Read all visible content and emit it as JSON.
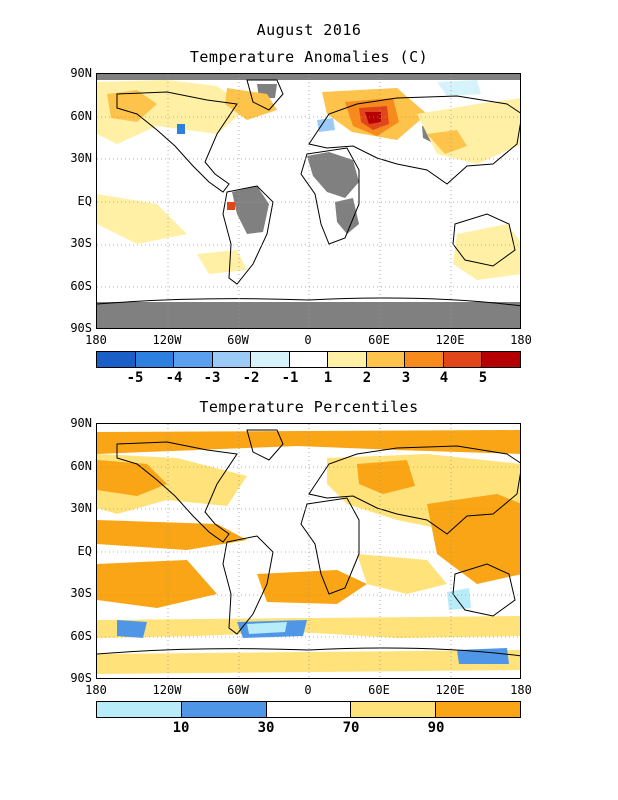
{
  "header": {
    "title": "August 2016",
    "subtitle": "Temperature Anomalies (C)"
  },
  "lower": {
    "title": "Temperature Percentiles"
  },
  "lat_labels": [
    "90N",
    "60N",
    "30N",
    "EQ",
    "30S",
    "60S",
    "90S"
  ],
  "lon_labels": [
    "180",
    "120W",
    "60W",
    "0",
    "60E",
    "120E",
    "180"
  ],
  "anomaly_colorbar": {
    "labels": [
      "-5",
      "-4",
      "-3",
      "-2",
      "-1",
      "1",
      "2",
      "3",
      "4",
      "5"
    ],
    "colors": [
      "#1a5fc8",
      "#2d7fe0",
      "#5aa0ee",
      "#9ccaf6",
      "#d6f3fb",
      "#ffffff",
      "#fff0a6",
      "#fdc34a",
      "#f78a1c",
      "#e0461a",
      "#b40000"
    ]
  },
  "percentile_colorbar": {
    "labels": [
      "10",
      "30",
      "70",
      "90"
    ],
    "colors": [
      "#b8ecf8",
      "#4f97e6",
      "#ffffff",
      "#ffe27a",
      "#f9a516"
    ]
  },
  "colors": {
    "missing": "#808080",
    "land_outline": "#000000",
    "grid": "#9a9a9a"
  }
}
